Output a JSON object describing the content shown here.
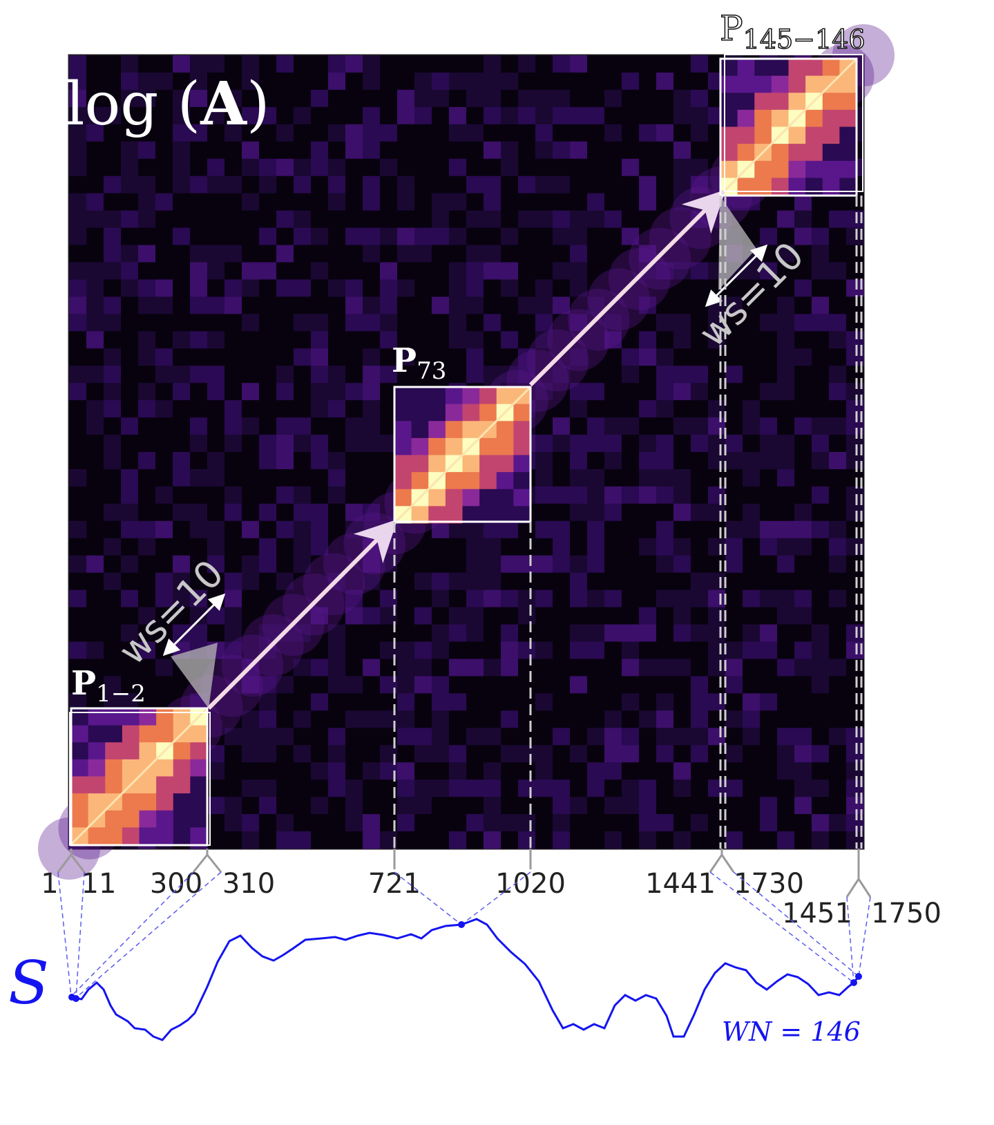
{
  "matrix_label": {
    "prefix": "log",
    "symbol": "A"
  },
  "patch_labels": [
    {
      "base": "P",
      "sub": "1−2"
    },
    {
      "base": "P",
      "sub": "73"
    },
    {
      "base": "P",
      "sub": "145−146"
    }
  ],
  "window_size_labels": [
    "ws=10",
    "ws=10"
  ],
  "index_labels": [
    "1",
    "11",
    "300",
    "310",
    "721",
    "1020",
    "1441",
    "1730",
    "1451",
    "1750"
  ],
  "curve": {
    "symbol": "S",
    "window_count_label": "WN = 146",
    "color": "#1414f0"
  },
  "colormap": [
    "#000004",
    "#2a0a52",
    "#5a178c",
    "#8a2a9a",
    "#c2456f",
    "#ec7a4d",
    "#fbb779",
    "#fcfdbf"
  ]
}
